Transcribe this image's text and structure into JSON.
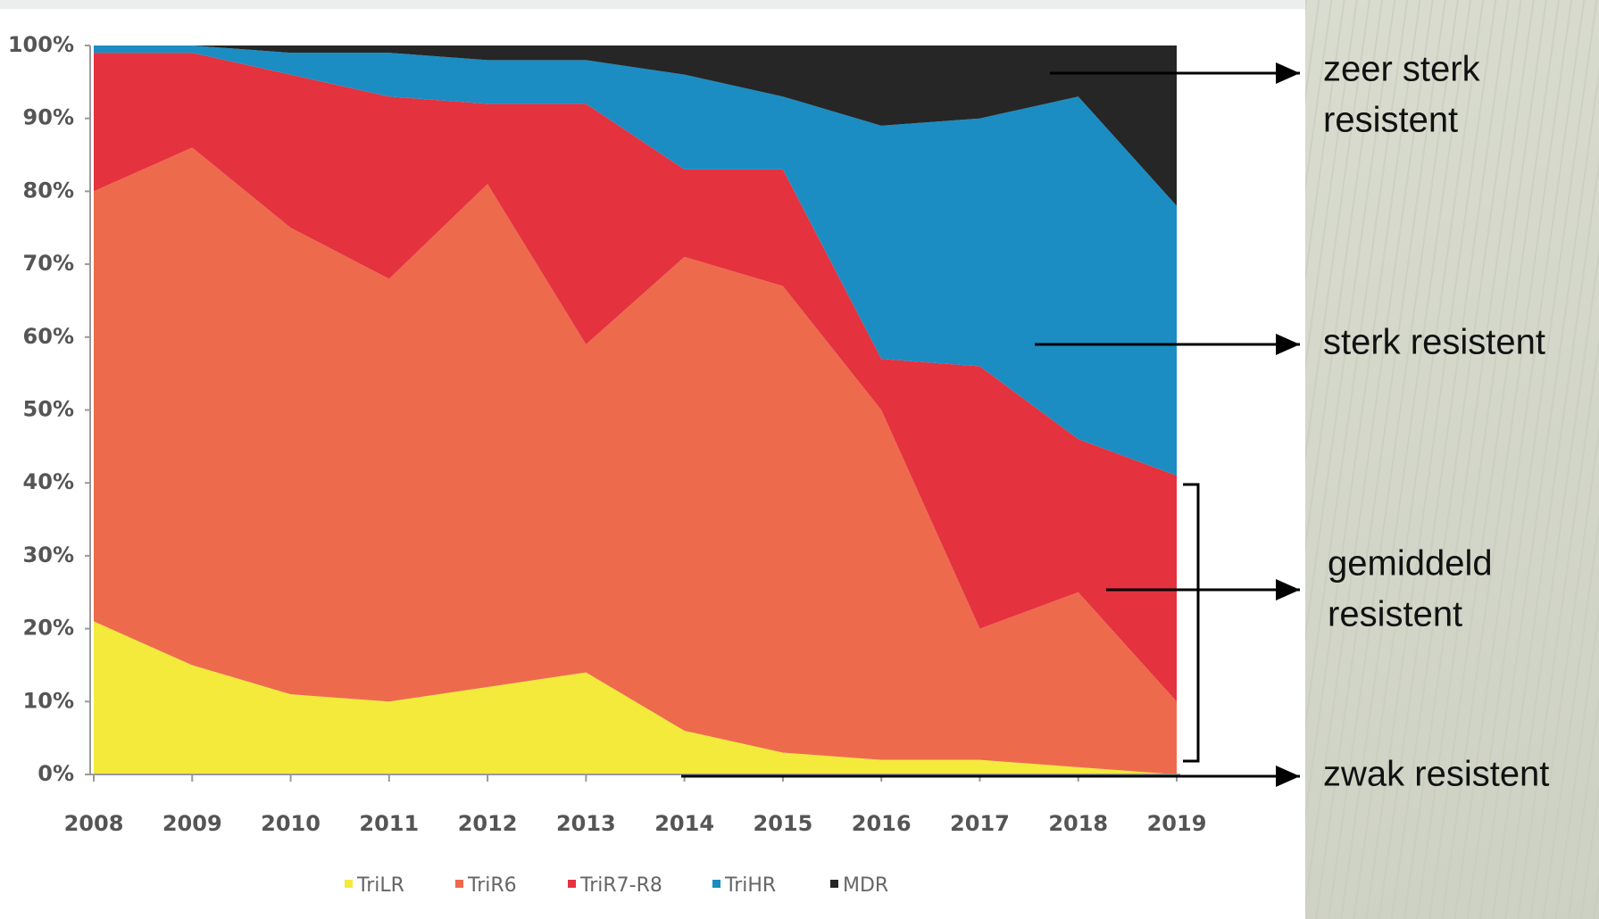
{
  "chart_data": {
    "type": "stacked_area",
    "categories": [
      "2008",
      "2009",
      "2010",
      "2011",
      "2012",
      "2013",
      "2014",
      "2015",
      "2016",
      "2017",
      "2018",
      "2019"
    ],
    "series": [
      {
        "name": "TriLR",
        "color": "#f3ea3c",
        "values": [
          21,
          15,
          11,
          10,
          12,
          14,
          6,
          3,
          2,
          2,
          1,
          0
        ]
      },
      {
        "name": "TriR6",
        "color": "#ee6a4d",
        "values": [
          59,
          71,
          64,
          58,
          69,
          45,
          65,
          64,
          48,
          18,
          24,
          10
        ]
      },
      {
        "name": "TriR7-R8",
        "color": "#e4323f",
        "values": [
          19,
          13,
          21,
          25,
          11,
          33,
          12,
          16,
          7,
          36,
          21,
          31
        ]
      },
      {
        "name": "TriHR",
        "color": "#1b8dc2",
        "values": [
          1,
          1,
          3,
          6,
          6,
          6,
          13,
          10,
          32,
          34,
          47,
          37
        ]
      },
      {
        "name": "MDR",
        "color": "#262626",
        "values": [
          0,
          0,
          1,
          1,
          2,
          2,
          4,
          7,
          11,
          10,
          7,
          22
        ]
      }
    ],
    "ylim": [
      0,
      100
    ],
    "yticks": [
      {
        "value": 0,
        "label": "0%"
      },
      {
        "value": 10,
        "label": "10%"
      },
      {
        "value": 20,
        "label": "20%"
      },
      {
        "value": 30,
        "label": "30%"
      },
      {
        "value": 40,
        "label": "40%"
      },
      {
        "value": 50,
        "label": "50%"
      },
      {
        "value": 60,
        "label": "60%"
      },
      {
        "value": 70,
        "label": "70%"
      },
      {
        "value": 80,
        "label": "80%"
      },
      {
        "value": 90,
        "label": "90%"
      },
      {
        "value": 100,
        "label": "100%"
      }
    ],
    "annotations": [
      {
        "lines": [
          "zeer sterk",
          "resistent"
        ]
      },
      {
        "lines": [
          "sterk resistent"
        ]
      },
      {
        "lines": [
          "gemiddeld",
          "resistent"
        ]
      },
      {
        "lines": [
          "zwak resistent"
        ]
      }
    ]
  }
}
